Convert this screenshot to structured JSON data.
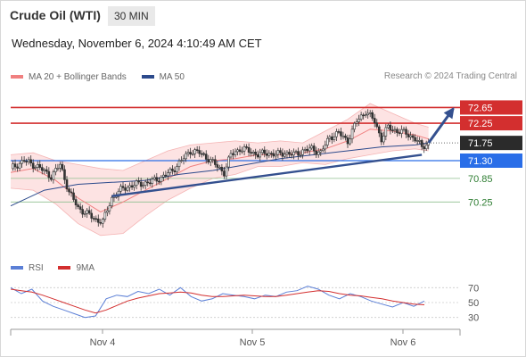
{
  "header": {
    "instrument": "Crude Oil (WTI)",
    "interval": "30 MIN",
    "datetime": "Wednesday, November 6, 2024 4:10:49 AM CET",
    "credit": "Research © 2024 Trading Central"
  },
  "legend_main": [
    {
      "label": "MA 20 + Bollinger Bands",
      "color": "#f08080"
    },
    {
      "label": "MA 50",
      "color": "#2c4a8c"
    }
  ],
  "legend_rsi": [
    {
      "label": "RSI",
      "color": "#5b7fd6"
    },
    {
      "label": "9MA",
      "color": "#d32f2f"
    }
  ],
  "colors": {
    "resistance": "#d32f2f",
    "pivot": "#2a6ee8",
    "support": "#2e7d32",
    "current": "#2b2b2b",
    "trend": "#34508f",
    "candle": "#333333",
    "bollinger_fill": "#fde3e3"
  },
  "chart_data": [
    {
      "type": "candlestick",
      "x_ticks": [
        "Nov 4",
        "Nov 5",
        "Nov 6"
      ],
      "ylim": [
        69.6,
        73.0
      ],
      "levels": [
        {
          "value": 72.65,
          "label": "72.65",
          "kind": "resistance"
        },
        {
          "value": 72.25,
          "label": "72.25",
          "kind": "resistance"
        },
        {
          "value": 71.75,
          "label": "71.75",
          "kind": "current"
        },
        {
          "value": 71.3,
          "label": "71.30",
          "kind": "pivot"
        },
        {
          "value": 70.85,
          "label": "70.85",
          "kind": "support"
        },
        {
          "value": 70.25,
          "label": "70.25",
          "kind": "support"
        }
      ],
      "approx_close_path": [
        [
          0,
          71.1
        ],
        [
          6,
          71.3
        ],
        [
          12,
          71.15
        ],
        [
          18,
          70.9
        ],
        [
          22,
          71.2
        ],
        [
          26,
          70.5
        ],
        [
          30,
          70.1
        ],
        [
          34,
          69.95
        ],
        [
          38,
          69.8
        ],
        [
          41,
          69.75
        ],
        [
          45,
          70.35
        ],
        [
          50,
          70.6
        ],
        [
          56,
          70.7
        ],
        [
          62,
          70.75
        ],
        [
          68,
          70.9
        ],
        [
          72,
          71.05
        ],
        [
          76,
          71.3
        ],
        [
          80,
          71.55
        ],
        [
          84,
          71.5
        ],
        [
          88,
          71.35
        ],
        [
          92,
          71.15
        ],
        [
          95,
          71.0
        ],
        [
          98,
          71.45
        ],
        [
          102,
          71.6
        ],
        [
          106,
          71.55
        ],
        [
          110,
          71.45
        ],
        [
          114,
          71.5
        ],
        [
          118,
          71.45
        ],
        [
          122,
          71.5
        ],
        [
          126,
          71.45
        ],
        [
          130,
          71.55
        ],
        [
          134,
          71.6
        ],
        [
          138,
          71.5
        ],
        [
          142,
          71.9
        ],
        [
          146,
          72.0
        ],
        [
          150,
          71.8
        ],
        [
          154,
          72.3
        ],
        [
          158,
          72.55
        ],
        [
          162,
          72.3
        ],
        [
          165,
          71.85
        ],
        [
          168,
          72.15
        ],
        [
          172,
          72.05
        ],
        [
          176,
          72.0
        ],
        [
          180,
          71.85
        ],
        [
          183,
          71.65
        ],
        [
          186,
          71.75
        ]
      ],
      "approx_ma20": [
        [
          0,
          71.0
        ],
        [
          10,
          71.1
        ],
        [
          20,
          70.8
        ],
        [
          30,
          70.35
        ],
        [
          40,
          70.0
        ],
        [
          50,
          70.25
        ],
        [
          60,
          70.55
        ],
        [
          70,
          70.85
        ],
        [
          80,
          71.15
        ],
        [
          90,
          71.3
        ],
        [
          100,
          71.35
        ],
        [
          110,
          71.45
        ],
        [
          120,
          71.45
        ],
        [
          130,
          71.5
        ],
        [
          140,
          71.6
        ],
        [
          150,
          71.8
        ],
        [
          160,
          72.1
        ],
        [
          170,
          72.05
        ],
        [
          180,
          71.95
        ],
        [
          186,
          71.85
        ]
      ],
      "approx_ma50": [
        [
          0,
          70.15
        ],
        [
          15,
          70.55
        ],
        [
          30,
          70.7
        ],
        [
          45,
          70.75
        ],
        [
          60,
          70.8
        ],
        [
          75,
          70.95
        ],
        [
          90,
          71.05
        ],
        [
          105,
          71.2
        ],
        [
          120,
          71.35
        ],
        [
          135,
          71.45
        ],
        [
          150,
          71.55
        ],
        [
          165,
          71.65
        ],
        [
          180,
          71.7
        ],
        [
          186,
          71.75
        ]
      ],
      "approx_bb_upper": [
        [
          0,
          71.45
        ],
        [
          10,
          71.5
        ],
        [
          20,
          71.3
        ],
        [
          30,
          71.2
        ],
        [
          40,
          71.1
        ],
        [
          50,
          71.05
        ],
        [
          60,
          71.3
        ],
        [
          70,
          71.55
        ],
        [
          80,
          71.7
        ],
        [
          90,
          71.75
        ],
        [
          100,
          71.8
        ],
        [
          110,
          71.75
        ],
        [
          120,
          71.8
        ],
        [
          130,
          71.75
        ],
        [
          140,
          72.05
        ],
        [
          150,
          72.35
        ],
        [
          160,
          72.75
        ],
        [
          170,
          72.5
        ],
        [
          180,
          72.25
        ],
        [
          186,
          72.15
        ]
      ],
      "approx_bb_lower": [
        [
          0,
          70.6
        ],
        [
          10,
          70.55
        ],
        [
          20,
          70.2
        ],
        [
          30,
          69.7
        ],
        [
          40,
          69.4
        ],
        [
          50,
          69.45
        ],
        [
          60,
          69.9
        ],
        [
          70,
          70.3
        ],
        [
          80,
          70.6
        ],
        [
          90,
          70.85
        ],
        [
          100,
          70.95
        ],
        [
          110,
          71.15
        ],
        [
          120,
          71.15
        ],
        [
          130,
          71.25
        ],
        [
          140,
          71.2
        ],
        [
          150,
          71.35
        ],
        [
          160,
          71.45
        ],
        [
          170,
          71.55
        ],
        [
          180,
          71.6
        ],
        [
          186,
          71.55
        ]
      ],
      "trend_line": [
        [
          45,
          70.4
        ],
        [
          183,
          71.45
        ]
      ],
      "projection_arrow": [
        [
          186,
          71.75
        ],
        [
          197,
          72.62
        ]
      ]
    },
    {
      "type": "line",
      "title": "RSI",
      "y_ticks": [
        70,
        50,
        30
      ],
      "ylim": [
        20,
        80
      ],
      "series": [
        {
          "name": "RSI",
          "values": [
            70,
            62,
            68,
            52,
            45,
            40,
            35,
            30,
            32,
            55,
            60,
            58,
            65,
            62,
            68,
            60,
            70,
            58,
            52,
            55,
            62,
            60,
            58,
            55,
            60,
            58,
            64,
            66,
            72,
            68,
            60,
            55,
            62,
            58,
            52,
            48,
            44,
            50,
            45,
            52
          ]
        },
        {
          "name": "9MA",
          "values": [
            68,
            66,
            64,
            60,
            55,
            50,
            45,
            40,
            36,
            40,
            46,
            52,
            56,
            59,
            62,
            63,
            64,
            63,
            60,
            58,
            58,
            59,
            60,
            59,
            58,
            58,
            60,
            62,
            64,
            66,
            65,
            62,
            60,
            59,
            57,
            55,
            52,
            50,
            48,
            47
          ]
        }
      ]
    }
  ]
}
